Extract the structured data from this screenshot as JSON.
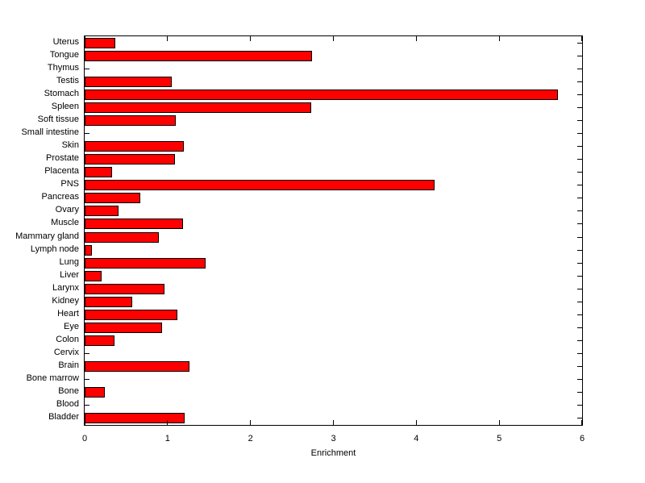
{
  "chart_data": {
    "type": "bar",
    "orientation": "horizontal",
    "title": "",
    "xlabel": "Enrichment",
    "ylabel": "",
    "xlim": [
      0,
      6
    ],
    "xticks": [
      0,
      1,
      2,
      3,
      4,
      5,
      6
    ],
    "grid": false,
    "legend": null,
    "bar_color": "#FF0000",
    "bar_edge_color": "#000000",
    "axis_color": "#000000",
    "background_color": "#FFFFFF",
    "categories_top_to_bottom": [
      "Uterus",
      "Tongue",
      "Thymus",
      "Testis",
      "Stomach",
      "Spleen",
      "Soft tissue",
      "Small intestine",
      "Skin",
      "Prostate",
      "Placenta",
      "PNS",
      "Pancreas",
      "Ovary",
      "Muscle",
      "Mammary gland",
      "Lymph node",
      "Lung",
      "Liver",
      "Larynx",
      "Kidney",
      "Heart",
      "Eye",
      "Colon",
      "Cervix",
      "Brain",
      "Bone marrow",
      "Bone",
      "Blood",
      "Bladder"
    ],
    "values": [
      0.37,
      2.74,
      0,
      1.05,
      5.71,
      2.73,
      1.1,
      0,
      1.2,
      1.09,
      0.33,
      4.22,
      0.67,
      0.41,
      1.19,
      0.89,
      0.09,
      1.46,
      0.2,
      0.96,
      0.57,
      1.12,
      0.93,
      0.36,
      0,
      1.26,
      0,
      0.24,
      0,
      1.21
    ]
  }
}
